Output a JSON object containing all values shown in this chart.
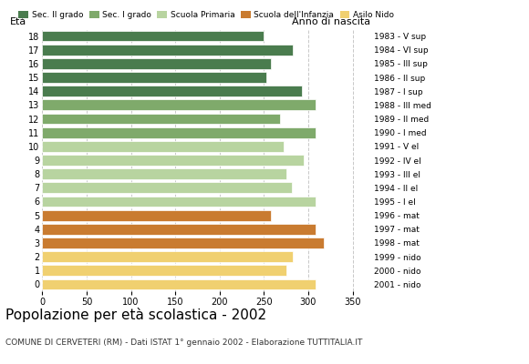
{
  "ages": [
    18,
    17,
    16,
    15,
    14,
    13,
    12,
    11,
    10,
    9,
    8,
    7,
    6,
    5,
    4,
    3,
    2,
    1,
    0
  ],
  "values": [
    250,
    283,
    258,
    253,
    293,
    308,
    268,
    308,
    272,
    295,
    275,
    282,
    308,
    258,
    308,
    318,
    283,
    275,
    308
  ],
  "right_labels": [
    "1983 - V sup",
    "1984 - VI sup",
    "1985 - III sup",
    "1986 - II sup",
    "1987 - I sup",
    "1988 - III med",
    "1989 - II med",
    "1990 - I med",
    "1991 - V el",
    "1992 - IV el",
    "1993 - III el",
    "1994 - II el",
    "1995 - I el",
    "1996 - mat",
    "1997 - mat",
    "1998 - mat",
    "1999 - nido",
    "2000 - nido",
    "2001 - nido"
  ],
  "bar_colors": [
    "#4a7c4e",
    "#4a7c4e",
    "#4a7c4e",
    "#4a7c4e",
    "#4a7c4e",
    "#7faa6b",
    "#7faa6b",
    "#7faa6b",
    "#b8d4a0",
    "#b8d4a0",
    "#b8d4a0",
    "#b8d4a0",
    "#b8d4a0",
    "#c97b30",
    "#c97b30",
    "#c97b30",
    "#f0d070",
    "#f0d070",
    "#f0d070"
  ],
  "legend_labels": [
    "Sec. II grado",
    "Sec. I grado",
    "Scuola Primaria",
    "Scuola dell'Infanzia",
    "Asilo Nido"
  ],
  "legend_colors": [
    "#4a7c4e",
    "#7faa6b",
    "#b8d4a0",
    "#c97b30",
    "#f0d070"
  ],
  "title": "Popolazione per età scolastica - 2002",
  "subtitle": "COMUNE DI CERVETERI (RM) - Dati ISTAT 1° gennaio 2002 - Elaborazione TUTTITALIA.IT",
  "xlabel_eta": "Età",
  "xlabel_anno": "Anno di nascita",
  "xlim": [
    0,
    370
  ],
  "xticks": [
    0,
    50,
    100,
    150,
    200,
    250,
    300,
    350
  ],
  "background_color": "#ffffff",
  "grid_color": "#c8c8c8"
}
